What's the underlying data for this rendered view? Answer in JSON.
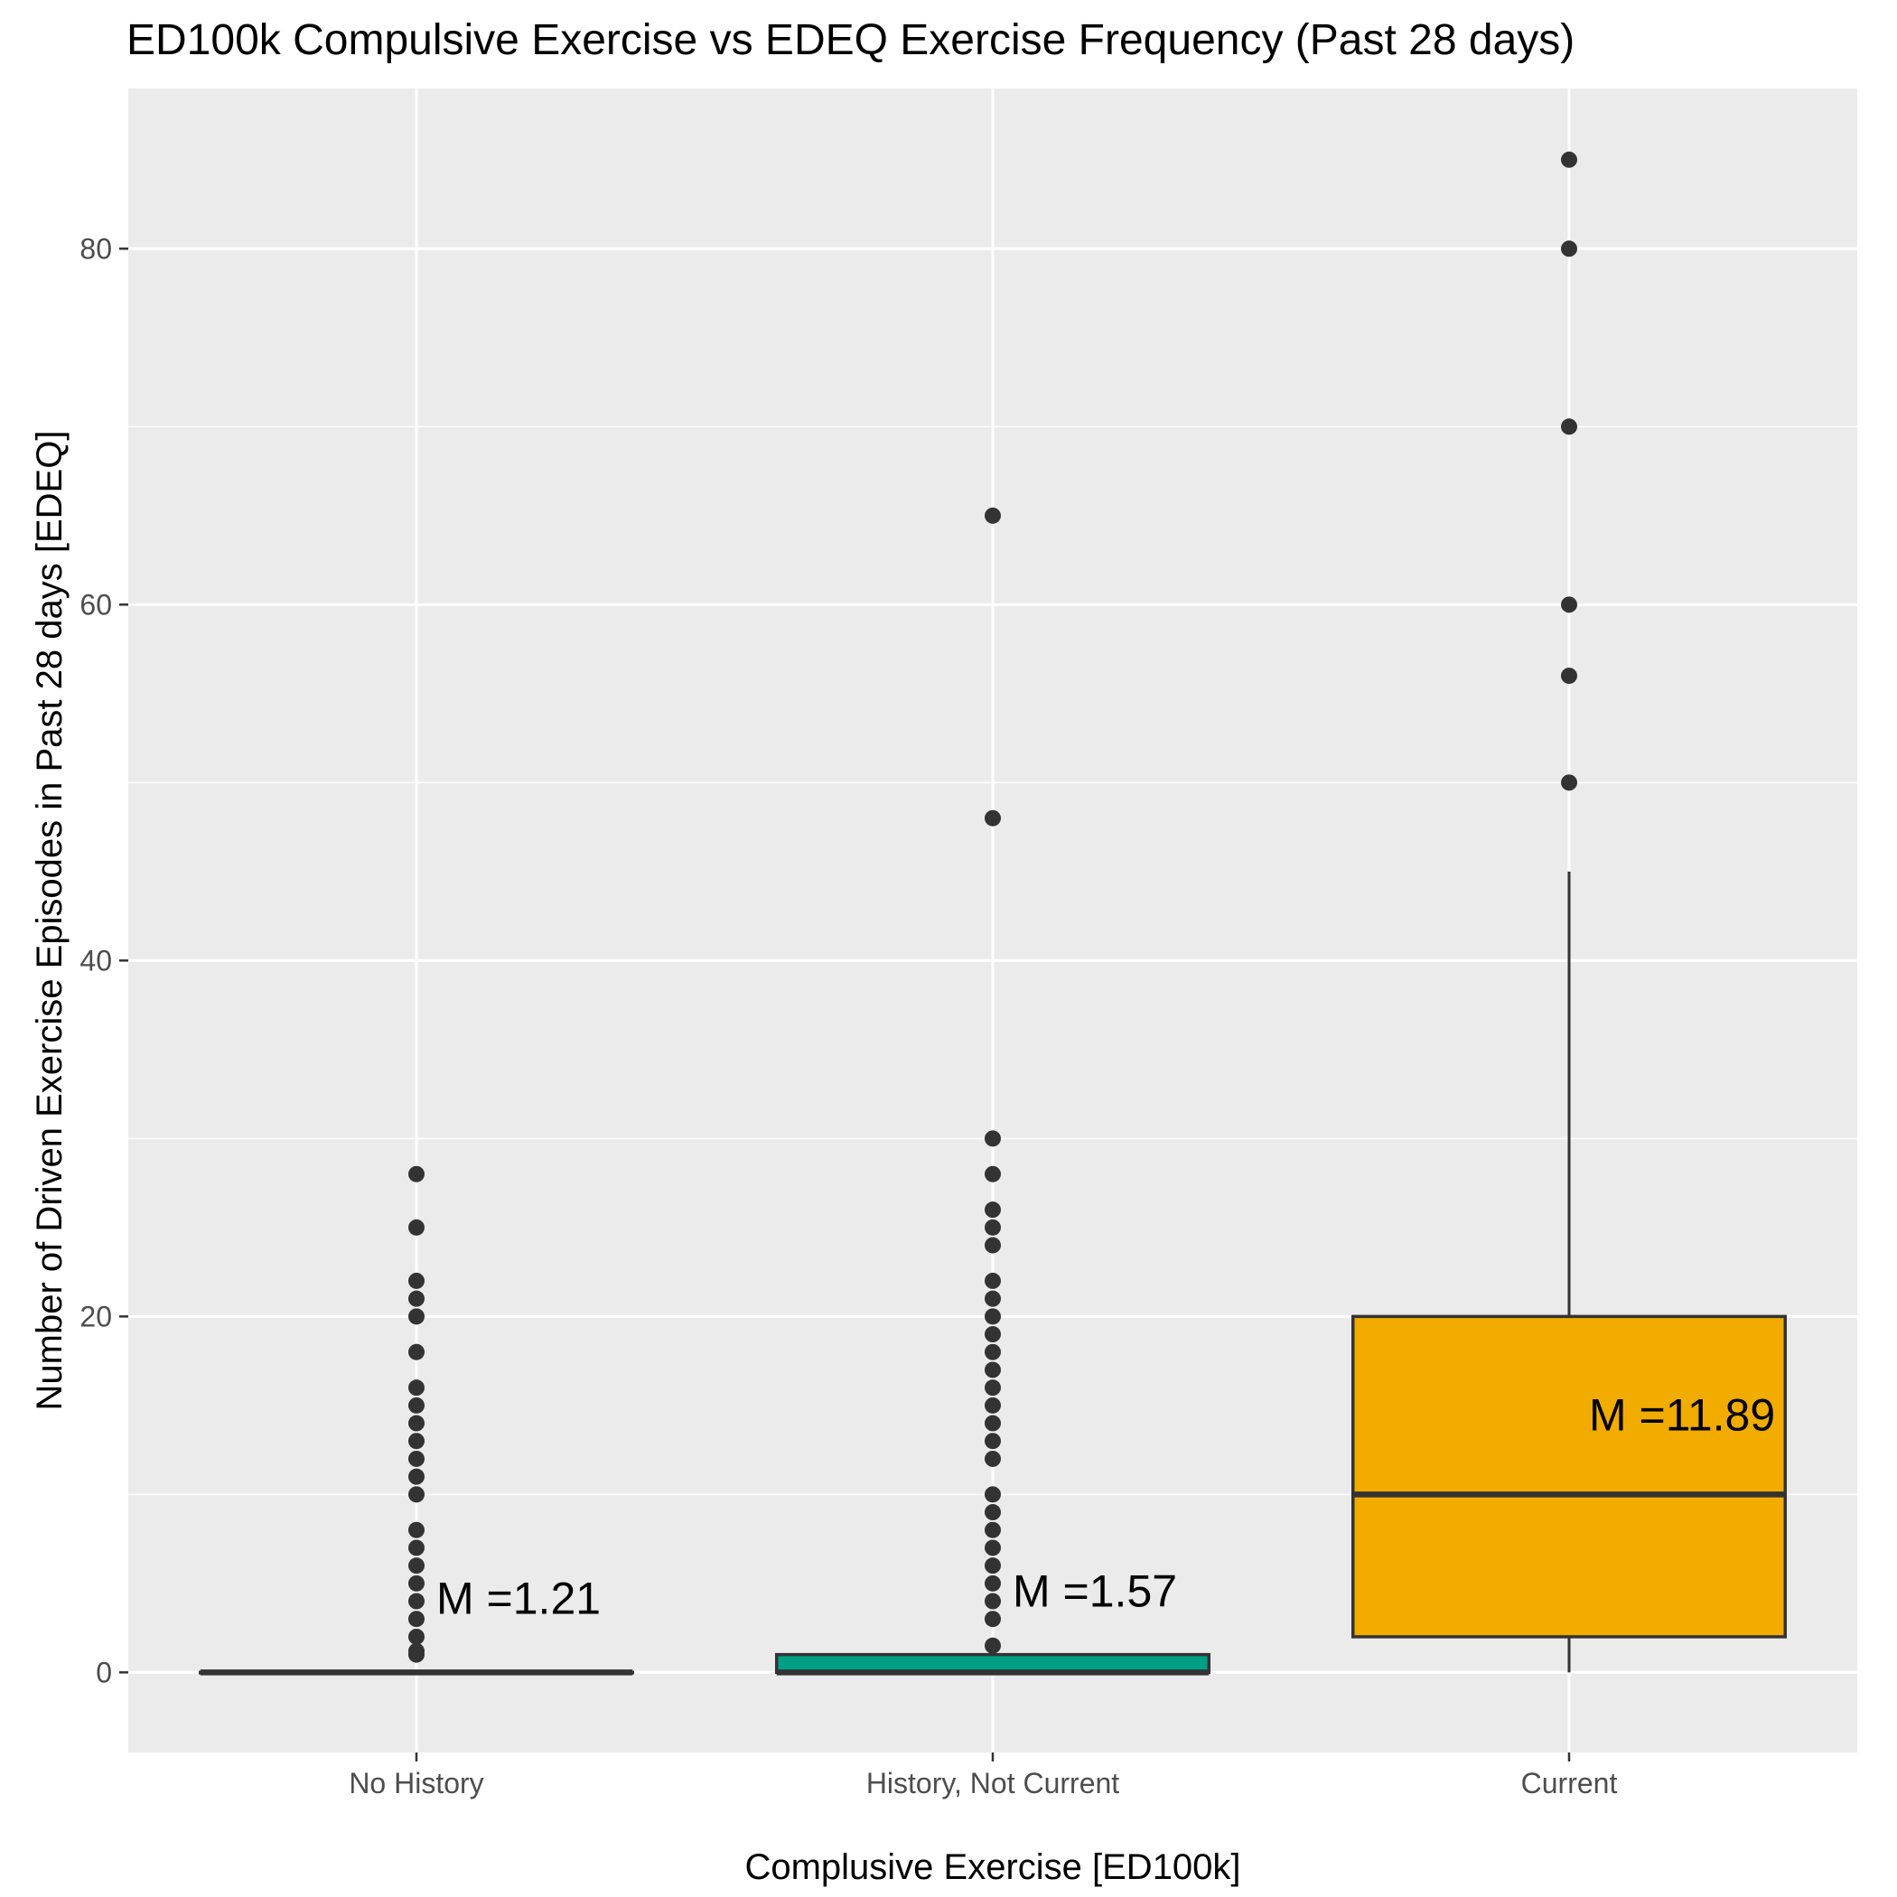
{
  "chart_data": {
    "type": "boxplot",
    "title": "ED100k Compulsive Exercise vs EDEQ Exercise Frequency (Past 28 days)",
    "xlabel": "Complusive Exercise [ED100k]",
    "ylabel": "Number of Driven Exercise Episodes in Past 28 days [EDEQ]",
    "ylim": [
      -4.5,
      89
    ],
    "y_ticks": [
      0,
      20,
      40,
      60,
      80
    ],
    "y_minor_ticks": [
      10,
      30,
      50,
      70
    ],
    "grid": true,
    "categories": [
      "No History",
      "History, Not Current",
      "Current"
    ],
    "series": [
      {
        "category": "No History",
        "box": {
          "min": 0,
          "q1": 0,
          "median": 0,
          "q3": 0,
          "max": 0
        },
        "fill": "#444444",
        "outliers": [
          1,
          1.2,
          2,
          3,
          4,
          5,
          6,
          7,
          8,
          10,
          11,
          12,
          13,
          14,
          15,
          16,
          18,
          20,
          21,
          22,
          25,
          28
        ],
        "mean_label": "M =1.21",
        "mean_label_y": 4.2
      },
      {
        "category": "History, Not Current",
        "box": {
          "min": 0,
          "q1": 0,
          "median": 0,
          "q3": 1,
          "max": 1
        },
        "fill": "#00a087",
        "outliers": [
          1.5,
          3,
          4,
          5,
          6,
          7,
          8,
          9,
          10,
          12,
          13,
          14,
          15,
          16,
          17,
          18,
          19,
          20,
          21,
          22,
          24,
          25,
          26,
          28,
          30,
          48,
          65
        ],
        "mean_label": "M =1.57",
        "mean_label_y": 4.6
      },
      {
        "category": "Current",
        "box": {
          "min": 0,
          "q1": 2,
          "median": 10,
          "q3": 20,
          "max": 45
        },
        "fill": "#f2ac00",
        "outliers": [
          50,
          56,
          60,
          70,
          80,
          85
        ],
        "mean_label": "M =11.89",
        "mean_label_y": 14.5
      }
    ]
  }
}
